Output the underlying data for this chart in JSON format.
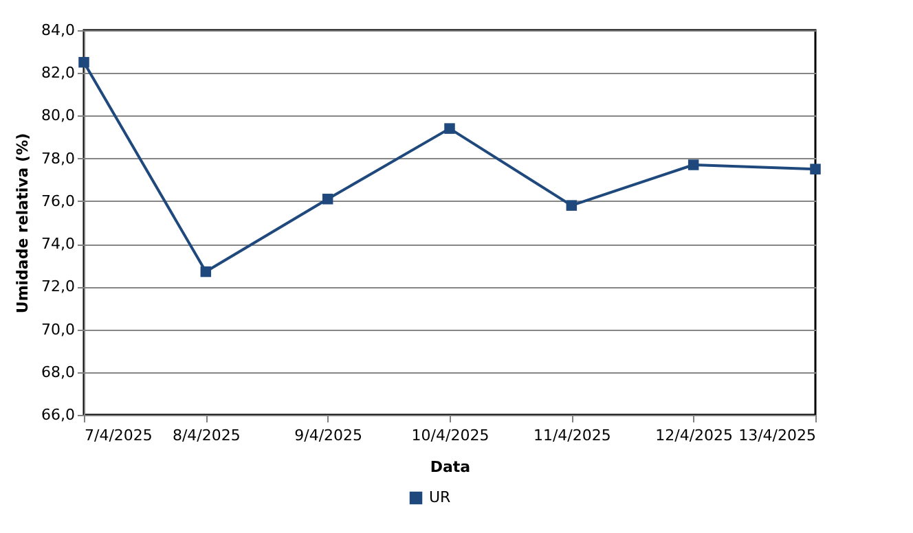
{
  "chart_data": {
    "type": "line",
    "xlabel": "Data",
    "ylabel": "Umidade relativa (%)",
    "categories": [
      "7/4/2025",
      "8/4/2025",
      "9/4/2025",
      "10/4/2025",
      "11/4/2025",
      "12/4/2025",
      "13/4/2025"
    ],
    "series": [
      {
        "name": "UR",
        "color": "#1f497d",
        "values": [
          82.5,
          72.7,
          76.1,
          79.4,
          75.8,
          77.7,
          77.5
        ]
      }
    ],
    "ylim": [
      66,
      84
    ],
    "yticks": [
      {
        "value": 66,
        "label": "66,0"
      },
      {
        "value": 68,
        "label": "68,0"
      },
      {
        "value": 70,
        "label": "70,0"
      },
      {
        "value": 72,
        "label": "72,0"
      },
      {
        "value": 74,
        "label": "74,0"
      },
      {
        "value": 76,
        "label": "76,0"
      },
      {
        "value": 78,
        "label": "78,0"
      },
      {
        "value": 80,
        "label": "80,0"
      },
      {
        "value": 82,
        "label": "82,0"
      },
      {
        "value": 84,
        "label": "84,0"
      }
    ],
    "grid": "y",
    "legend": "bottom",
    "marker": "square",
    "line_style": "solid"
  }
}
